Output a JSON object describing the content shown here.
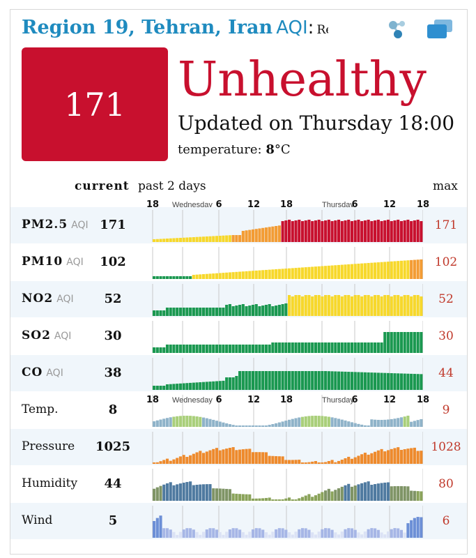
{
  "header": {
    "city": "Region 19, Tehran, Iran",
    "aqi_word": "AQI",
    "aqi_colon": ":",
    "aqi_tail": "Re"
  },
  "aqi": {
    "value": "171",
    "status": "Unhealthy",
    "updated": "Updated on Thursday 18:00",
    "temperature_label": "temperature:",
    "temperature_value": "8",
    "temperature_unit": "°C"
  },
  "columns": {
    "current": "current",
    "past": "past 2 days",
    "max": "max"
  },
  "axis_labels": [
    "18",
    "Wednesday",
    "6",
    "12",
    "18",
    "Thursday",
    "6",
    "12",
    "18"
  ],
  "pollutants": [
    {
      "name": "PM2.5",
      "unit": "AQI",
      "current": "171",
      "max": "171"
    },
    {
      "name": "PM10",
      "unit": "AQI",
      "current": "102",
      "max": "102"
    },
    {
      "name": "NO2",
      "unit": "AQI",
      "current": "52",
      "max": "52"
    },
    {
      "name": "SO2",
      "unit": "AQI",
      "current": "30",
      "max": "30"
    },
    {
      "name": "CO",
      "unit": "AQI",
      "current": "38",
      "max": "44"
    }
  ],
  "weather": [
    {
      "name": "Temp.",
      "current": "8",
      "max": "9"
    },
    {
      "name": "Pressure",
      "current": "1025",
      "max": "1028"
    },
    {
      "name": "Humidity",
      "current": "44",
      "max": "80"
    },
    {
      "name": "Wind",
      "current": "5",
      "max": "6"
    }
  ],
  "icons": {
    "share": "share-icon",
    "chat": "chat-icon"
  },
  "colors": {
    "unhealthy": "#c8102e",
    "title_blue": "#1f8bbf",
    "good": "#1a9850",
    "moderate": "#f7d82b",
    "usg": "#f39c34",
    "max_text": "#c0392b"
  }
}
